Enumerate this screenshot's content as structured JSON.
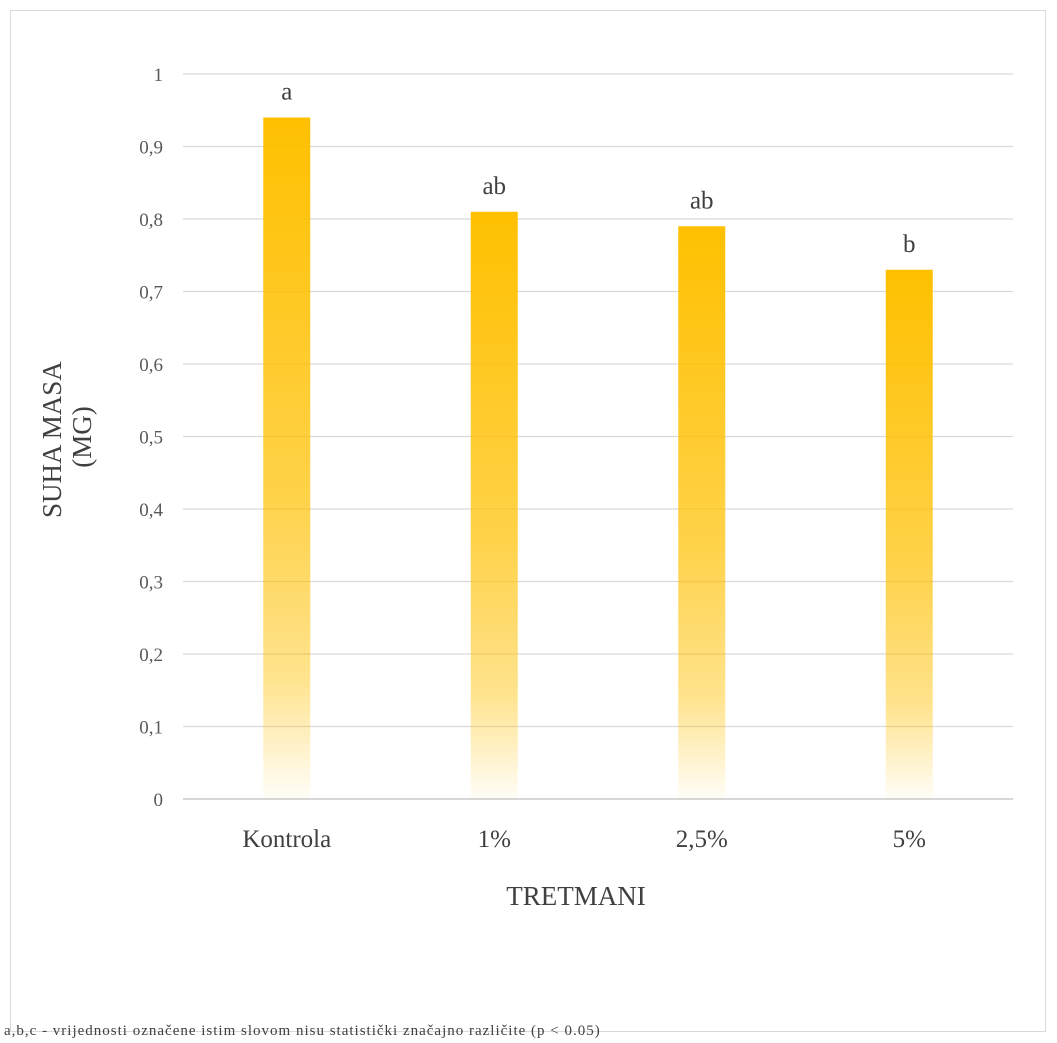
{
  "chart_data": {
    "type": "bar",
    "categories": [
      "Kontrola",
      "1%",
      "2,5%",
      "5%"
    ],
    "values": [
      0.94,
      0.81,
      0.79,
      0.73
    ],
    "data_labels": [
      "a",
      "ab",
      "ab",
      "b"
    ],
    "xlabel": "TRETMANI",
    "ylabel_lines": [
      "SUHA MASA",
      "(MG)"
    ],
    "ylim": [
      0,
      1
    ],
    "yticks": [
      "0",
      "0,1",
      "0,2",
      "0,3",
      "0,4",
      "0,5",
      "0,6",
      "0,7",
      "0,8",
      "0,9",
      "1"
    ],
    "grid": true,
    "legend": "none",
    "bar_color": "#ffc000"
  },
  "footnote": "a,b,c - vrijednosti označene istim slovom nisu statistički značajno različite (p < 0.05)"
}
